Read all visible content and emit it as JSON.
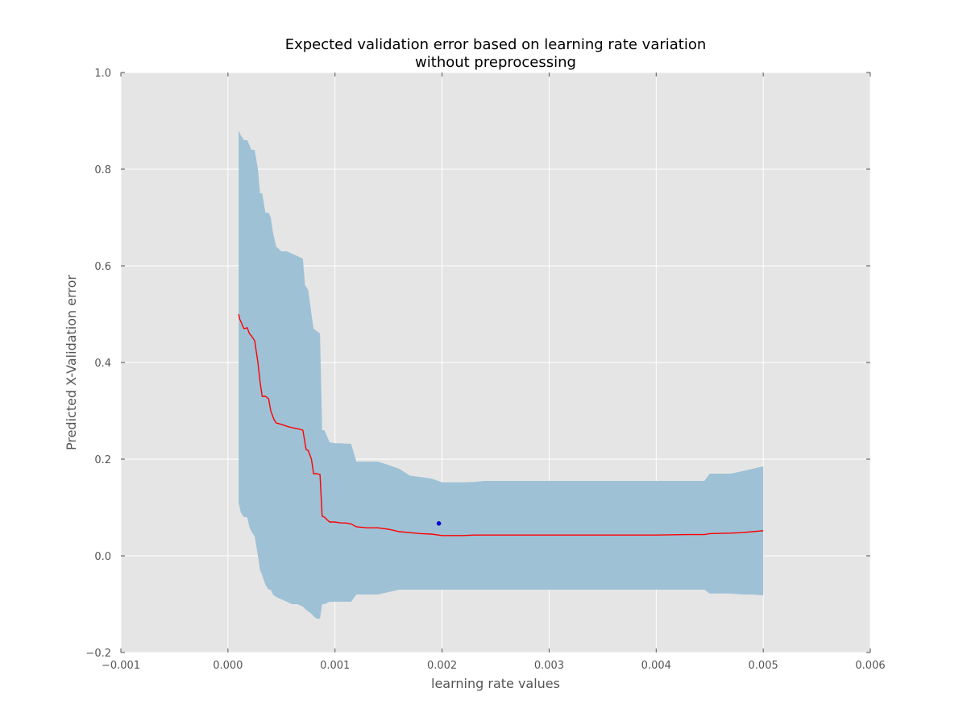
{
  "chart_data": {
    "type": "line",
    "title": "Expected validation error based on learning rate variation",
    "subtitle": "without preprocessing",
    "xlabel": "learning rate values",
    "ylabel": "Predicted X-Validation error",
    "xlim": [
      -0.001,
      0.006
    ],
    "ylim": [
      -0.2,
      1.0
    ],
    "xticks": [
      -0.001,
      0.0,
      0.001,
      0.002,
      0.003,
      0.004,
      0.005,
      0.006
    ],
    "xtick_labels": [
      "−0.001",
      "0.000",
      "0.001",
      "0.002",
      "0.003",
      "0.004",
      "0.005",
      "0.006"
    ],
    "yticks": [
      -0.2,
      0.0,
      0.2,
      0.4,
      0.6,
      0.8,
      1.0
    ],
    "ytick_labels": [
      "−0.2",
      "0.0",
      "0.2",
      "0.4",
      "0.6",
      "0.8",
      "1.0"
    ],
    "grid": true,
    "colors": {
      "background": "#e5e5e5",
      "grid": "#ffffff",
      "band": "#9ec1d6",
      "mean_line": "#ff0000",
      "observation": "#0000ff"
    },
    "series": [
      {
        "name": "confidence band",
        "kind": "band",
        "x": [
          0.0001,
          0.00012,
          0.00015,
          0.00018,
          0.0002,
          0.00022,
          0.00025,
          0.00028,
          0.0003,
          0.00032,
          0.00035,
          0.00038,
          0.0004,
          0.00042,
          0.00045,
          0.0005,
          0.00055,
          0.0006,
          0.00065,
          0.0007,
          0.00072,
          0.00075,
          0.00078,
          0.0008,
          0.00083,
          0.00086,
          0.00088,
          0.0009,
          0.00095,
          0.001,
          0.00105,
          0.0011,
          0.00115,
          0.0012,
          0.0013,
          0.0014,
          0.0015,
          0.0016,
          0.0017,
          0.0018,
          0.0019,
          0.002,
          0.0021,
          0.0022,
          0.0023,
          0.0024,
          0.003,
          0.0035,
          0.004,
          0.0043,
          0.00445,
          0.0045,
          0.0047,
          0.0048,
          0.0049,
          0.005
        ],
        "upper": [
          0.88,
          0.87,
          0.86,
          0.86,
          0.85,
          0.84,
          0.84,
          0.8,
          0.75,
          0.75,
          0.71,
          0.71,
          0.7,
          0.67,
          0.64,
          0.63,
          0.63,
          0.625,
          0.62,
          0.615,
          0.56,
          0.55,
          0.5,
          0.47,
          0.465,
          0.46,
          0.26,
          0.26,
          0.235,
          0.233,
          0.233,
          0.232,
          0.232,
          0.195,
          0.195,
          0.195,
          0.188,
          0.18,
          0.166,
          0.163,
          0.16,
          0.152,
          0.152,
          0.152,
          0.153,
          0.155,
          0.155,
          0.155,
          0.155,
          0.155,
          0.155,
          0.17,
          0.17,
          0.175,
          0.18,
          0.185
        ],
        "lower": [
          0.11,
          0.09,
          0.08,
          0.08,
          0.06,
          0.05,
          0.04,
          0.0,
          -0.03,
          -0.04,
          -0.06,
          -0.07,
          -0.07,
          -0.08,
          -0.085,
          -0.09,
          -0.095,
          -0.1,
          -0.1,
          -0.105,
          -0.11,
          -0.115,
          -0.12,
          -0.125,
          -0.13,
          -0.13,
          -0.1,
          -0.1,
          -0.095,
          -0.095,
          -0.095,
          -0.095,
          -0.095,
          -0.08,
          -0.08,
          -0.08,
          -0.075,
          -0.07,
          -0.07,
          -0.07,
          -0.07,
          -0.07,
          -0.07,
          -0.07,
          -0.07,
          -0.07,
          -0.07,
          -0.07,
          -0.07,
          -0.07,
          -0.07,
          -0.078,
          -0.078,
          -0.08,
          -0.08,
          -0.082
        ]
      },
      {
        "name": "predicted mean",
        "kind": "line",
        "x": [
          0.0001,
          0.00011,
          0.00013,
          0.00015,
          0.00018,
          0.0002,
          0.00022,
          0.00025,
          0.00028,
          0.0003,
          0.00032,
          0.00035,
          0.00038,
          0.0004,
          0.00043,
          0.00045,
          0.0005,
          0.00055,
          0.0006,
          0.00065,
          0.0007,
          0.00073,
          0.00075,
          0.00078,
          0.0008,
          0.00083,
          0.00086,
          0.00088,
          0.0009,
          0.00095,
          0.001,
          0.00105,
          0.0011,
          0.00115,
          0.0012,
          0.0013,
          0.0014,
          0.0015,
          0.0016,
          0.0017,
          0.0018,
          0.0019,
          0.002,
          0.0021,
          0.0022,
          0.0023,
          0.0024,
          0.003,
          0.0035,
          0.004,
          0.0043,
          0.00445,
          0.0045,
          0.0047,
          0.0048,
          0.0049,
          0.005
        ],
        "y": [
          0.5,
          0.49,
          0.48,
          0.47,
          0.472,
          0.46,
          0.455,
          0.445,
          0.4,
          0.36,
          0.33,
          0.33,
          0.325,
          0.3,
          0.282,
          0.275,
          0.272,
          0.268,
          0.265,
          0.263,
          0.26,
          0.22,
          0.218,
          0.2,
          0.17,
          0.17,
          0.168,
          0.082,
          0.08,
          0.07,
          0.07,
          0.068,
          0.068,
          0.066,
          0.06,
          0.058,
          0.058,
          0.055,
          0.05,
          0.048,
          0.046,
          0.045,
          0.042,
          0.042,
          0.042,
          0.043,
          0.043,
          0.043,
          0.043,
          0.043,
          0.044,
          0.044,
          0.046,
          0.047,
          0.048,
          0.05,
          0.052
        ]
      },
      {
        "name": "observation",
        "kind": "scatter",
        "x": [
          0.00197
        ],
        "y": [
          0.067
        ]
      }
    ]
  }
}
